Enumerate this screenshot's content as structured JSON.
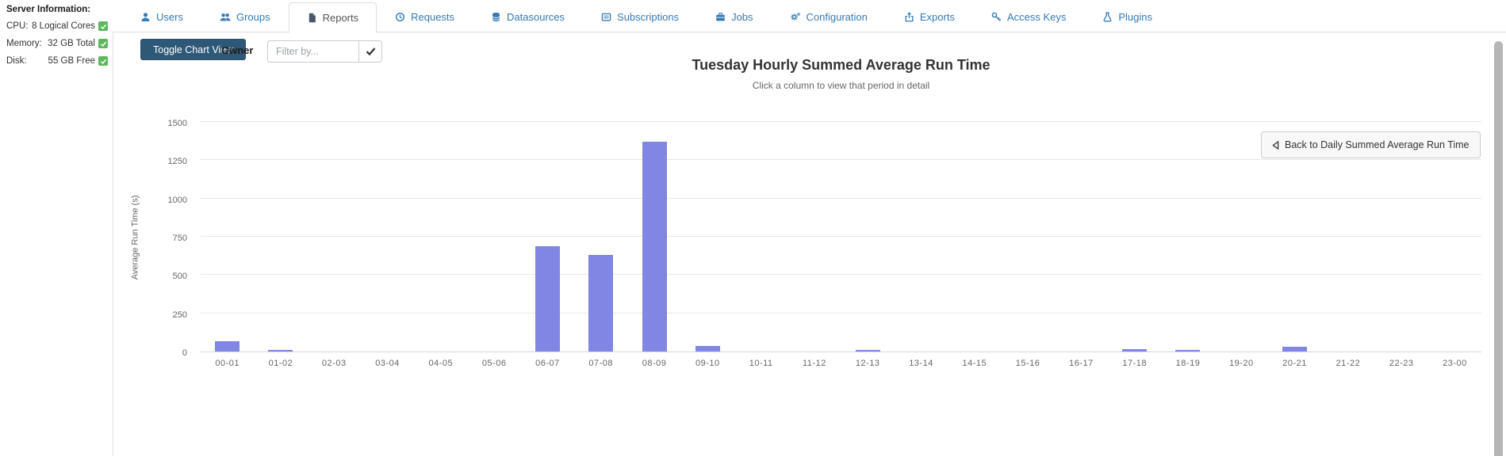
{
  "server_info": {
    "title": "Server Information:",
    "rows": [
      {
        "label": "CPU:",
        "value": "8 Logical Cores",
        "status_icon": "check"
      },
      {
        "label": "Memory:",
        "value": "32 GB Total",
        "status_icon": "check"
      },
      {
        "label": "Disk:",
        "value": "55 GB Free",
        "status_icon": "check"
      }
    ],
    "status_color": "#5cb85c"
  },
  "tabs": {
    "items": [
      {
        "label": "Users",
        "icon": "user-icon",
        "active": false
      },
      {
        "label": "Groups",
        "icon": "users-icon",
        "active": false
      },
      {
        "label": "Reports",
        "icon": "file-icon",
        "active": true
      },
      {
        "label": "Requests",
        "icon": "history-icon",
        "active": false
      },
      {
        "label": "Datasources",
        "icon": "database-icon",
        "active": false
      },
      {
        "label": "Subscriptions",
        "icon": "subscriptions-icon",
        "active": false
      },
      {
        "label": "Jobs",
        "icon": "briefcase-icon",
        "active": false
      },
      {
        "label": "Configuration",
        "icon": "gears-icon",
        "active": false
      },
      {
        "label": "Exports",
        "icon": "export-icon",
        "active": false
      },
      {
        "label": "Access Keys",
        "icon": "key-icon",
        "active": false
      },
      {
        "label": "Plugins",
        "icon": "flask-icon",
        "active": false
      }
    ],
    "link_color": "#337ab7",
    "active_color": "#555555"
  },
  "toolbar": {
    "toggle_button_label": "Toggle Chart View",
    "toggle_button_color": "#2d5877",
    "owner_label": "Owner",
    "filter_placeholder": "Filter by...",
    "apply_icon": "check-icon"
  },
  "chart": {
    "back_button_label": "Back to Daily Summed Average Run Time",
    "back_button_icon": "left-triangle-icon"
  },
  "chart_data": {
    "type": "bar",
    "title": "Tuesday Hourly Summed Average Run Time",
    "subtitle": "Click a column to view that period in detail",
    "xlabel": "",
    "ylabel": "Average Run Time (s)",
    "categories": [
      "00-01",
      "01-02",
      "02-03",
      "03-04",
      "04-05",
      "05-06",
      "06-07",
      "07-08",
      "08-09",
      "09-10",
      "10-11",
      "11-12",
      "12-13",
      "13-14",
      "14-15",
      "15-16",
      "16-17",
      "17-18",
      "18-19",
      "19-20",
      "20-21",
      "21-22",
      "22-23",
      "23-00"
    ],
    "values": [
      65,
      8,
      0,
      0,
      0,
      0,
      690,
      630,
      1370,
      35,
      0,
      0,
      8,
      0,
      0,
      0,
      0,
      15,
      9,
      0,
      30,
      0,
      0,
      0
    ],
    "yticks": [
      0,
      250,
      500,
      750,
      1000,
      1250,
      1500
    ],
    "ylim": [
      0,
      1500
    ],
    "bar_color": "#8186e5",
    "gridline_color": "#e7e7e7",
    "axis_line_color": "#ccd6eb",
    "grid": true,
    "legend": false
  }
}
